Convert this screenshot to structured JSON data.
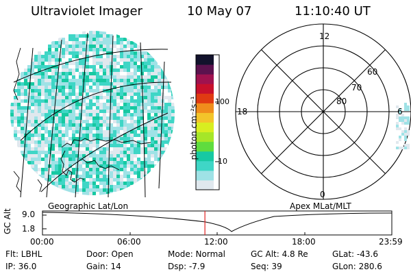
{
  "header": {
    "instrument": "Ultraviolet Imager",
    "date": "10 May 07",
    "time": "11:10:40 UT"
  },
  "panels": {
    "geo_label": "Geographic Lat/Lon",
    "apex_label": "Apex  MLat/MLT"
  },
  "colorbar": {
    "unit_label": "photon cm⁻²s⁻¹",
    "tick_100": "100",
    "tick_10": "10",
    "colors": [
      "#e0e8ee",
      "#9fe2e6",
      "#3fd6c6",
      "#17c9a2",
      "#5fdc3e",
      "#a6e628",
      "#d8ee20",
      "#f3c52a",
      "#f08d1c",
      "#e03a12",
      "#c8102c",
      "#a0124f",
      "#5c124e",
      "#12122c"
    ]
  },
  "polar": {
    "mlt_labels": {
      "top": "12",
      "left": "18",
      "right": "6",
      "bottom": "0"
    },
    "lat_labels": [
      "60",
      "70",
      "80"
    ]
  },
  "timeline": {
    "ylabel": "GC Alt",
    "ymax": "9.0",
    "ymin": "1.8",
    "ticks": [
      "00:00",
      "06:00",
      "12:00",
      "18:00",
      "23:59"
    ],
    "current_time_fraction": 0.465
  },
  "status": {
    "flt": "Flt: LBHL",
    "door": "Door: Open",
    "mode": "Mode: Normal",
    "gc_alt": "GC Alt: 4.8 Re",
    "glat": "GLat: -43.6",
    "ip": "IP: 36.0",
    "gain": "Gain: 14",
    "dsp": "Dsp:    -7.9",
    "seq": "Seq: 39",
    "glon": "GLon: 280.6"
  }
}
